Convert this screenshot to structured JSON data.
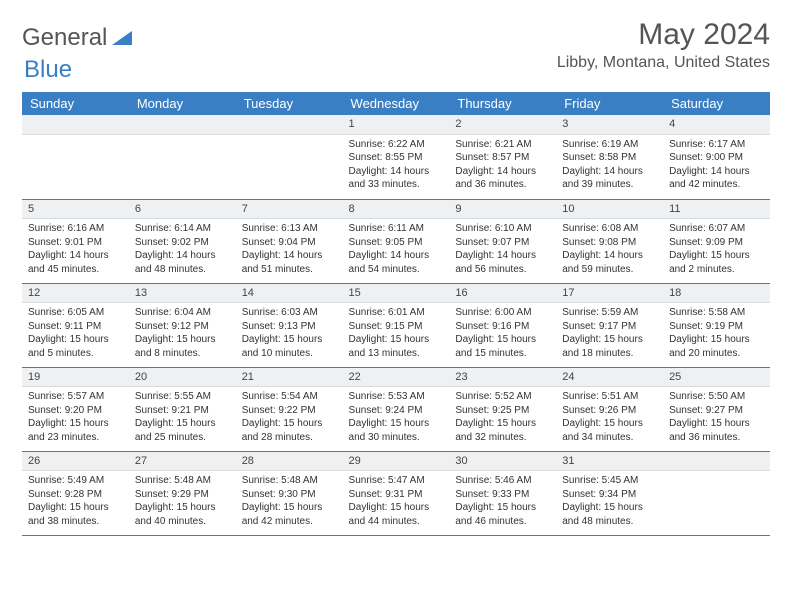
{
  "logo": {
    "text_a": "General",
    "text_b": "Blue",
    "triangle_color": "#3a7fc4"
  },
  "title": "May 2024",
  "location": "Libby, Montana, United States",
  "colors": {
    "header_bg": "#3a7fc4",
    "header_fg": "#ffffff",
    "daynum_bg": "#eef0f2",
    "rule": "#3a7fc4"
  },
  "weekdays": [
    "Sunday",
    "Monday",
    "Tuesday",
    "Wednesday",
    "Thursday",
    "Friday",
    "Saturday"
  ],
  "weeks": [
    [
      null,
      null,
      null,
      {
        "n": "1",
        "sr": "6:22 AM",
        "ss": "8:55 PM",
        "dl": "14 hours and 33 minutes."
      },
      {
        "n": "2",
        "sr": "6:21 AM",
        "ss": "8:57 PM",
        "dl": "14 hours and 36 minutes."
      },
      {
        "n": "3",
        "sr": "6:19 AM",
        "ss": "8:58 PM",
        "dl": "14 hours and 39 minutes."
      },
      {
        "n": "4",
        "sr": "6:17 AM",
        "ss": "9:00 PM",
        "dl": "14 hours and 42 minutes."
      }
    ],
    [
      {
        "n": "5",
        "sr": "6:16 AM",
        "ss": "9:01 PM",
        "dl": "14 hours and 45 minutes."
      },
      {
        "n": "6",
        "sr": "6:14 AM",
        "ss": "9:02 PM",
        "dl": "14 hours and 48 minutes."
      },
      {
        "n": "7",
        "sr": "6:13 AM",
        "ss": "9:04 PM",
        "dl": "14 hours and 51 minutes."
      },
      {
        "n": "8",
        "sr": "6:11 AM",
        "ss": "9:05 PM",
        "dl": "14 hours and 54 minutes."
      },
      {
        "n": "9",
        "sr": "6:10 AM",
        "ss": "9:07 PM",
        "dl": "14 hours and 56 minutes."
      },
      {
        "n": "10",
        "sr": "6:08 AM",
        "ss": "9:08 PM",
        "dl": "14 hours and 59 minutes."
      },
      {
        "n": "11",
        "sr": "6:07 AM",
        "ss": "9:09 PM",
        "dl": "15 hours and 2 minutes."
      }
    ],
    [
      {
        "n": "12",
        "sr": "6:05 AM",
        "ss": "9:11 PM",
        "dl": "15 hours and 5 minutes."
      },
      {
        "n": "13",
        "sr": "6:04 AM",
        "ss": "9:12 PM",
        "dl": "15 hours and 8 minutes."
      },
      {
        "n": "14",
        "sr": "6:03 AM",
        "ss": "9:13 PM",
        "dl": "15 hours and 10 minutes."
      },
      {
        "n": "15",
        "sr": "6:01 AM",
        "ss": "9:15 PM",
        "dl": "15 hours and 13 minutes."
      },
      {
        "n": "16",
        "sr": "6:00 AM",
        "ss": "9:16 PM",
        "dl": "15 hours and 15 minutes."
      },
      {
        "n": "17",
        "sr": "5:59 AM",
        "ss": "9:17 PM",
        "dl": "15 hours and 18 minutes."
      },
      {
        "n": "18",
        "sr": "5:58 AM",
        "ss": "9:19 PM",
        "dl": "15 hours and 20 minutes."
      }
    ],
    [
      {
        "n": "19",
        "sr": "5:57 AM",
        "ss": "9:20 PM",
        "dl": "15 hours and 23 minutes."
      },
      {
        "n": "20",
        "sr": "5:55 AM",
        "ss": "9:21 PM",
        "dl": "15 hours and 25 minutes."
      },
      {
        "n": "21",
        "sr": "5:54 AM",
        "ss": "9:22 PM",
        "dl": "15 hours and 28 minutes."
      },
      {
        "n": "22",
        "sr": "5:53 AM",
        "ss": "9:24 PM",
        "dl": "15 hours and 30 minutes."
      },
      {
        "n": "23",
        "sr": "5:52 AM",
        "ss": "9:25 PM",
        "dl": "15 hours and 32 minutes."
      },
      {
        "n": "24",
        "sr": "5:51 AM",
        "ss": "9:26 PM",
        "dl": "15 hours and 34 minutes."
      },
      {
        "n": "25",
        "sr": "5:50 AM",
        "ss": "9:27 PM",
        "dl": "15 hours and 36 minutes."
      }
    ],
    [
      {
        "n": "26",
        "sr": "5:49 AM",
        "ss": "9:28 PM",
        "dl": "15 hours and 38 minutes."
      },
      {
        "n": "27",
        "sr": "5:48 AM",
        "ss": "9:29 PM",
        "dl": "15 hours and 40 minutes."
      },
      {
        "n": "28",
        "sr": "5:48 AM",
        "ss": "9:30 PM",
        "dl": "15 hours and 42 minutes."
      },
      {
        "n": "29",
        "sr": "5:47 AM",
        "ss": "9:31 PM",
        "dl": "15 hours and 44 minutes."
      },
      {
        "n": "30",
        "sr": "5:46 AM",
        "ss": "9:33 PM",
        "dl": "15 hours and 46 minutes."
      },
      {
        "n": "31",
        "sr": "5:45 AM",
        "ss": "9:34 PM",
        "dl": "15 hours and 48 minutes."
      },
      null
    ]
  ],
  "labels": {
    "sunrise": "Sunrise:",
    "sunset": "Sunset:",
    "daylight": "Daylight:"
  }
}
